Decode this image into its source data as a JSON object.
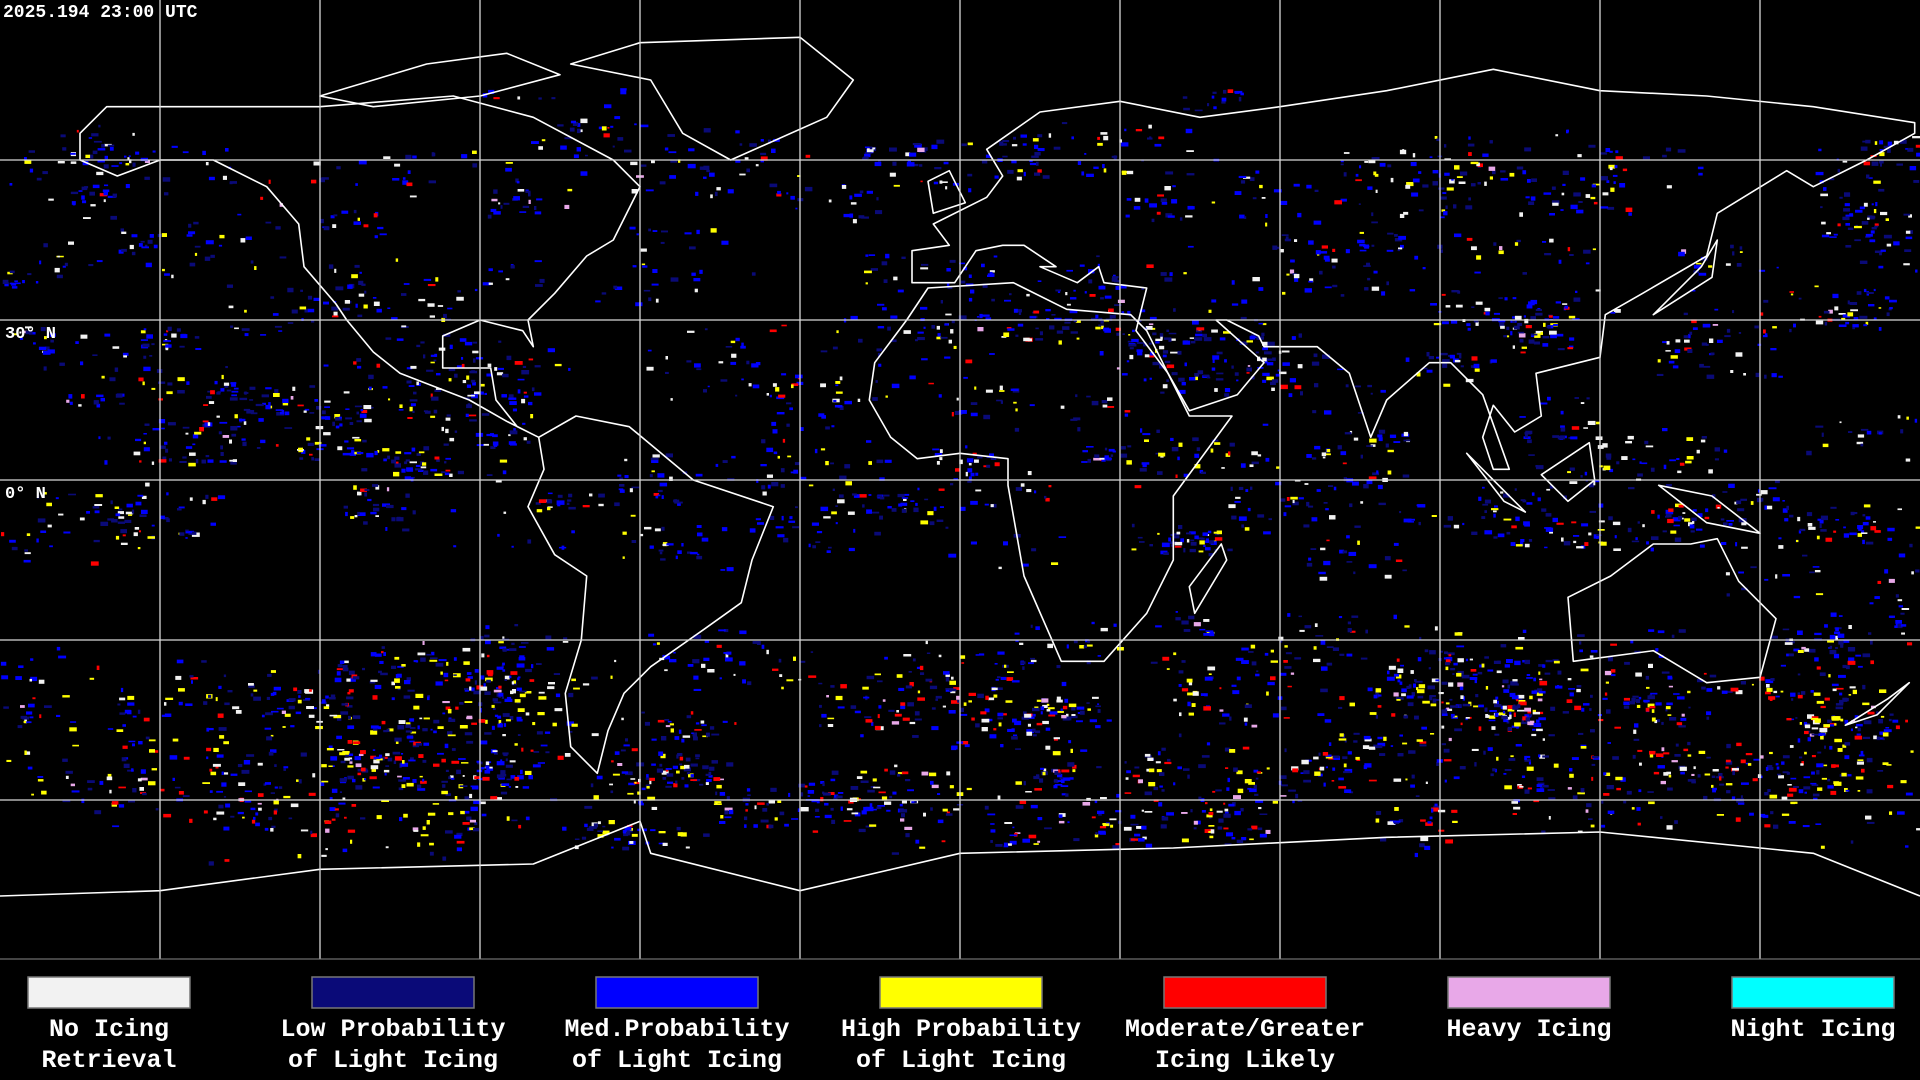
{
  "header": {
    "timestamp": "2025.194 23:00 UTC"
  },
  "map": {
    "lat_labels": [
      "30° N",
      "0° N"
    ]
  },
  "legend": {
    "items": [
      {
        "label": [
          "No Icing",
          "Retrieval"
        ],
        "color": "#f2f2f2"
      },
      {
        "label": [
          "Low Probability",
          "of Light Icing"
        ],
        "color": "#0a0a78"
      },
      {
        "label": [
          "Med.Probability",
          "of Light Icing"
        ],
        "color": "#0000ff"
      },
      {
        "label": [
          "High Probability",
          "of Light Icing"
        ],
        "color": "#ffff00"
      },
      {
        "label": [
          "Moderate/Greater",
          "Icing Likely"
        ],
        "color": "#ff0000"
      },
      {
        "label": [
          "Heavy Icing"
        ],
        "color": "#e8a8e8"
      },
      {
        "label": [
          "Night Icing"
        ],
        "color": "#00ffff"
      }
    ]
  }
}
